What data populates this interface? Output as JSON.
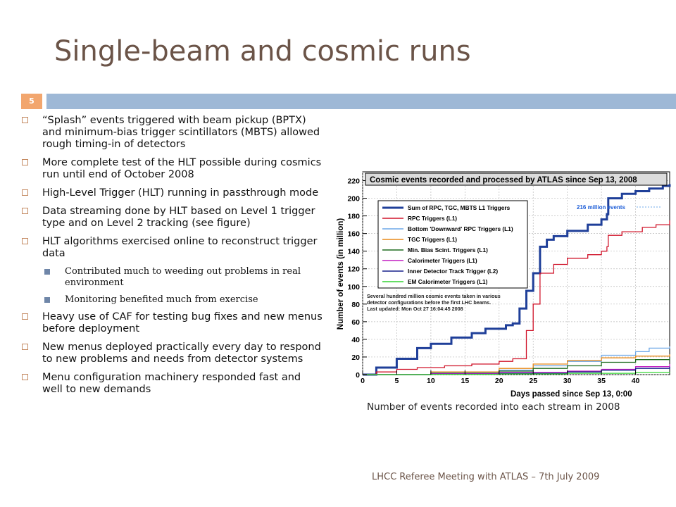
{
  "slide": {
    "title": "Single-beam and cosmic runs",
    "number": "5",
    "footer": "LHCC Referee Meeting with ATLAS – 7th July 2009",
    "caption": "Number of events recorded into each stream in 2008",
    "bullets": [
      "“Splash” events triggered with beam pickup (BPTX) and minimum-bias trigger scintillators (MBTS) allowed rough timing-in of detectors",
      "More complete test of the HLT possible during cosmics run until end of October 2008",
      "High-Level Trigger (HLT) running in passthrough mode",
      "Data streaming done by HLT based on Level 1 trigger type and on Level 2 tracking (see figure)",
      "HLT algorithms exercised online to reconstruct trigger data",
      "Contributed much to weeding out problems in real environment",
      "Monitoring benefited much from exercise",
      "Heavy use of CAF for testing bug fixes and new menus before deployment",
      "New menus deployed practically every day to respond to new problems and needs from detector systems",
      "Menu configuration machinery responded fast and well to new demands"
    ],
    "colors": {
      "title": "#6b5448",
      "number_box": "#f2a66e",
      "header_bar": "#9eb8d6"
    }
  },
  "chart_data": {
    "type": "line",
    "title": "Cosmic events recorded and processed by ATLAS since Sep 13, 2008",
    "xlabel": "Days passed since Sep 13, 0:00",
    "ylabel": "Number of events (in million)",
    "xlim": [
      0,
      45
    ],
    "ylim": [
      0,
      230
    ],
    "xticks": [
      0,
      5,
      10,
      15,
      20,
      25,
      30,
      35,
      40
    ],
    "yticks": [
      0,
      20,
      40,
      60,
      80,
      100,
      120,
      140,
      160,
      180,
      200,
      220
    ],
    "grid": true,
    "legend": "top-left",
    "annotation": "216 million events",
    "note_lines": [
      "Several hundred million cosmic events taken in various",
      "detector configurations before the first LHC beams.",
      "Last updated: Mon Oct 27 16:04:45 2008"
    ],
    "series": [
      {
        "name": "Sum of RPC, TGC, MBTS L1 Triggers",
        "color": "#1f3f99",
        "width": 3,
        "x": [
          0,
          2,
          5,
          8,
          10,
          13,
          16,
          18,
          21,
          22,
          23,
          24,
          25,
          26,
          27,
          28,
          30,
          33,
          35,
          35.8,
          36,
          38,
          40,
          42,
          44,
          45
        ],
        "y": [
          0,
          8,
          18,
          30,
          35,
          42,
          47,
          52,
          56,
          58,
          75,
          95,
          115,
          145,
          153,
          157,
          163,
          170,
          176,
          182,
          200,
          205,
          208,
          211,
          214,
          216
        ]
      },
      {
        "name": "RPC Triggers (L1)",
        "color": "#d0142a",
        "width": 1.3,
        "x": [
          0,
          2,
          5,
          8,
          12,
          16,
          20,
          22,
          24,
          25,
          26,
          28,
          30,
          33,
          35,
          35.8,
          36,
          38,
          41,
          43,
          45
        ],
        "y": [
          0,
          3,
          6,
          8,
          10,
          12,
          15,
          18,
          50,
          80,
          115,
          125,
          132,
          136,
          140,
          145,
          158,
          162,
          167,
          170,
          175
        ]
      },
      {
        "name": "Bottom 'Downward' RPC Triggers (L1)",
        "color": "#6fa8e8",
        "width": 1.3,
        "x": [
          0,
          10,
          20,
          25,
          30,
          35,
          40,
          42,
          45
        ],
        "y": [
          0,
          2,
          5,
          10,
          15,
          22,
          26,
          30,
          32
        ]
      },
      {
        "name": "TGC Triggers (L1)",
        "color": "#e88a1a",
        "width": 1.3,
        "x": [
          0,
          10,
          20,
          25,
          30,
          35,
          40,
          45
        ],
        "y": [
          0,
          3,
          7,
          12,
          16,
          19,
          21,
          23
        ]
      },
      {
        "name": "Min. Bias Scint. Triggers (L1)",
        "color": "#1e6b1e",
        "width": 1.3,
        "x": [
          0,
          10,
          20,
          25,
          30,
          35,
          40,
          45
        ],
        "y": [
          0,
          1.5,
          4,
          7,
          10,
          14,
          17,
          19
        ]
      },
      {
        "name": "Calorimeter Triggers (L1)",
        "color": "#c21fc2",
        "width": 1.3,
        "x": [
          0,
          10,
          20,
          30,
          35,
          40,
          45
        ],
        "y": [
          0,
          1,
          2.5,
          4,
          6,
          9,
          12
        ]
      },
      {
        "name": "Inner Detector Track Trigger (L2)",
        "color": "#17208c",
        "width": 1.3,
        "x": [
          0,
          10,
          20,
          30,
          35,
          40,
          45
        ],
        "y": [
          0,
          0.5,
          1.5,
          3,
          5,
          7,
          9
        ]
      },
      {
        "name": "EM Calorimeter Triggers (L1)",
        "color": "#33d433",
        "width": 1.3,
        "x": [
          0,
          10,
          20,
          30,
          40,
          45
        ],
        "y": [
          0,
          0.3,
          0.8,
          1.5,
          2.5,
          3
        ]
      }
    ]
  }
}
